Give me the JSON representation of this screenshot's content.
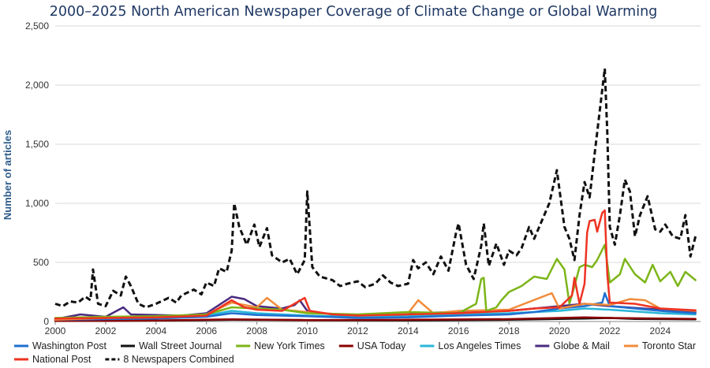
{
  "chart_data": {
    "type": "line",
    "title": "2000–2025 North American Newspaper Coverage of Climate Change or Global Warming",
    "xlabel": "",
    "ylabel": "Number of articles",
    "ylim": [
      0,
      2500
    ],
    "xlim": [
      2000,
      2025.6
    ],
    "yticks": [
      0,
      500,
      1000,
      1500,
      2000,
      2500
    ],
    "ytick_labels": [
      "0",
      "500",
      "1,000",
      "1,500",
      "2,000",
      "2,500"
    ],
    "xticks": [
      2000,
      2002,
      2004,
      2006,
      2008,
      2010,
      2012,
      2014,
      2016,
      2018,
      2020,
      2022,
      2024
    ],
    "xtick_labels": [
      "2000",
      "2002",
      "2004",
      "2006",
      "2008",
      "2010",
      "2012",
      "2014",
      "2016",
      "2018",
      "2020",
      "2022",
      "2024"
    ],
    "grid": true,
    "legend_position": "bottom",
    "series": [
      {
        "name": "Washington Post",
        "color": "#1f6fd1",
        "dashed": false,
        "width": 2.5,
        "points": [
          [
            2000,
            15
          ],
          [
            2002,
            20
          ],
          [
            2004,
            25
          ],
          [
            2006,
            40
          ],
          [
            2007,
            70
          ],
          [
            2008,
            55
          ],
          [
            2010,
            45
          ],
          [
            2012,
            30
          ],
          [
            2014,
            35
          ],
          [
            2016,
            50
          ],
          [
            2018,
            60
          ],
          [
            2019,
            80
          ],
          [
            2020,
            110
          ],
          [
            2021,
            130
          ],
          [
            2021.7,
            160
          ],
          [
            2021.8,
            240
          ],
          [
            2022,
            130
          ],
          [
            2023,
            110
          ],
          [
            2024,
            90
          ],
          [
            2025.4,
            70
          ]
        ]
      },
      {
        "name": "Wall Street Journal",
        "color": "#111111",
        "dashed": false,
        "width": 2.5,
        "points": [
          [
            2000,
            5
          ],
          [
            2004,
            8
          ],
          [
            2007,
            15
          ],
          [
            2010,
            12
          ],
          [
            2014,
            10
          ],
          [
            2018,
            15
          ],
          [
            2021,
            25
          ],
          [
            2022,
            30
          ],
          [
            2023,
            22
          ],
          [
            2025.4,
            18
          ]
        ]
      },
      {
        "name": "New York Times",
        "color": "#7cb518",
        "dashed": false,
        "width": 2.5,
        "points": [
          [
            2000,
            30
          ],
          [
            2002,
            40
          ],
          [
            2004,
            45
          ],
          [
            2006,
            60
          ],
          [
            2007,
            120
          ],
          [
            2008,
            110
          ],
          [
            2009,
            100
          ],
          [
            2010,
            70
          ],
          [
            2012,
            60
          ],
          [
            2014,
            80
          ],
          [
            2016,
            70
          ],
          [
            2016.7,
            150
          ],
          [
            2016.9,
            360
          ],
          [
            2017,
            370
          ],
          [
            2017.1,
            90
          ],
          [
            2017.5,
            120
          ],
          [
            2017.7,
            180
          ],
          [
            2018,
            250
          ],
          [
            2018.5,
            300
          ],
          [
            2019,
            380
          ],
          [
            2019.5,
            360
          ],
          [
            2019.9,
            530
          ],
          [
            2020.2,
            440
          ],
          [
            2020.4,
            150
          ],
          [
            2020.6,
            300
          ],
          [
            2020.8,
            460
          ],
          [
            2021,
            480
          ],
          [
            2021.3,
            460
          ],
          [
            2021.5,
            520
          ],
          [
            2021.8,
            650
          ],
          [
            2022,
            330
          ],
          [
            2022.4,
            400
          ],
          [
            2022.6,
            530
          ],
          [
            2023,
            400
          ],
          [
            2023.4,
            330
          ],
          [
            2023.7,
            480
          ],
          [
            2024,
            340
          ],
          [
            2024.4,
            420
          ],
          [
            2024.7,
            300
          ],
          [
            2025,
            420
          ],
          [
            2025.4,
            350
          ]
        ]
      },
      {
        "name": "USA Today",
        "color": "#8b0000",
        "dashed": false,
        "width": 2.5,
        "points": [
          [
            2000,
            5
          ],
          [
            2004,
            8
          ],
          [
            2007,
            18
          ],
          [
            2010,
            12
          ],
          [
            2014,
            15
          ],
          [
            2018,
            20
          ],
          [
            2021,
            35
          ],
          [
            2022,
            30
          ],
          [
            2024,
            25
          ],
          [
            2025.4,
            22
          ]
        ]
      },
      {
        "name": "Los Angeles Times",
        "color": "#29b6d8",
        "dashed": false,
        "width": 2.5,
        "points": [
          [
            2000,
            20
          ],
          [
            2002,
            30
          ],
          [
            2004,
            35
          ],
          [
            2006,
            50
          ],
          [
            2007,
            90
          ],
          [
            2008,
            70
          ],
          [
            2010,
            50
          ],
          [
            2012,
            40
          ],
          [
            2014,
            50
          ],
          [
            2016,
            60
          ],
          [
            2018,
            70
          ],
          [
            2020,
            90
          ],
          [
            2021,
            110
          ],
          [
            2022,
            100
          ],
          [
            2024,
            70
          ],
          [
            2025.4,
            60
          ]
        ]
      },
      {
        "name": "Globe & Mail",
        "color": "#4b2a7f",
        "dashed": false,
        "width": 2.5,
        "points": [
          [
            2000,
            20
          ],
          [
            2001,
            60
          ],
          [
            2002,
            40
          ],
          [
            2002.7,
            120
          ],
          [
            2003,
            60
          ],
          [
            2005,
            50
          ],
          [
            2006,
            70
          ],
          [
            2007,
            210
          ],
          [
            2007.5,
            190
          ],
          [
            2008,
            130
          ],
          [
            2009,
            110
          ],
          [
            2009.5,
            140
          ],
          [
            2009.7,
            180
          ],
          [
            2010,
            90
          ],
          [
            2011,
            60
          ],
          [
            2012,
            50
          ],
          [
            2014,
            70
          ],
          [
            2016,
            80
          ],
          [
            2018,
            90
          ],
          [
            2020,
            130
          ],
          [
            2021,
            150
          ],
          [
            2022,
            130
          ],
          [
            2024,
            100
          ],
          [
            2025.4,
            80
          ]
        ]
      },
      {
        "name": "Toronto Star",
        "color": "#f08c3c",
        "dashed": false,
        "width": 2.5,
        "points": [
          [
            2000,
            15
          ],
          [
            2002,
            30
          ],
          [
            2004,
            35
          ],
          [
            2006,
            60
          ],
          [
            2007,
            160
          ],
          [
            2007.5,
            140
          ],
          [
            2008,
            120
          ],
          [
            2008.4,
            200
          ],
          [
            2009,
            100
          ],
          [
            2010,
            80
          ],
          [
            2012,
            50
          ],
          [
            2014,
            70
          ],
          [
            2014.4,
            180
          ],
          [
            2015,
            70
          ],
          [
            2016,
            90
          ],
          [
            2018,
            100
          ],
          [
            2019.7,
            240
          ],
          [
            2020,
            110
          ],
          [
            2021,
            150
          ],
          [
            2022,
            140
          ],
          [
            2022.8,
            190
          ],
          [
            2023.4,
            180
          ],
          [
            2024,
            110
          ],
          [
            2025.4,
            90
          ]
        ]
      },
      {
        "name": "National Post",
        "color": "#ee3322",
        "dashed": false,
        "width": 2.5,
        "points": [
          [
            2000,
            25
          ],
          [
            2002,
            30
          ],
          [
            2004,
            35
          ],
          [
            2006,
            50
          ],
          [
            2007,
            180
          ],
          [
            2007.5,
            120
          ],
          [
            2008,
            100
          ],
          [
            2009,
            90
          ],
          [
            2009.9,
            200
          ],
          [
            2010.1,
            90
          ],
          [
            2011,
            60
          ],
          [
            2012,
            50
          ],
          [
            2014,
            60
          ],
          [
            2016,
            70
          ],
          [
            2017,
            80
          ],
          [
            2018,
            90
          ],
          [
            2019,
            110
          ],
          [
            2020,
            120
          ],
          [
            2020.5,
            220
          ],
          [
            2020.6,
            370
          ],
          [
            2020.8,
            150
          ],
          [
            2021,
            320
          ],
          [
            2021.1,
            750
          ],
          [
            2021.2,
            850
          ],
          [
            2021.4,
            860
          ],
          [
            2021.5,
            760
          ],
          [
            2021.7,
            920
          ],
          [
            2021.8,
            940
          ],
          [
            2021.9,
            400
          ],
          [
            2022,
            160
          ],
          [
            2023,
            150
          ],
          [
            2024,
            110
          ],
          [
            2025.4,
            95
          ]
        ]
      },
      {
        "name": "8 Newspapers Combined",
        "color": "#111111",
        "dashed": true,
        "width": 3,
        "points": [
          [
            2000,
            150
          ],
          [
            2000.3,
            130
          ],
          [
            2000.6,
            170
          ],
          [
            2000.9,
            160
          ],
          [
            2001.2,
            210
          ],
          [
            2001.4,
            180
          ],
          [
            2001.5,
            440
          ],
          [
            2001.7,
            150
          ],
          [
            2002,
            130
          ],
          [
            2002.3,
            260
          ],
          [
            2002.6,
            220
          ],
          [
            2002.8,
            380
          ],
          [
            2003,
            300
          ],
          [
            2003.3,
            150
          ],
          [
            2003.6,
            120
          ],
          [
            2004,
            150
          ],
          [
            2004.5,
            200
          ],
          [
            2004.8,
            160
          ],
          [
            2005,
            220
          ],
          [
            2005.5,
            270
          ],
          [
            2005.8,
            230
          ],
          [
            2006,
            330
          ],
          [
            2006.3,
            300
          ],
          [
            2006.5,
            450
          ],
          [
            2006.8,
            420
          ],
          [
            2007,
            600
          ],
          [
            2007.1,
            1000
          ],
          [
            2007.3,
            800
          ],
          [
            2007.6,
            650
          ],
          [
            2007.9,
            820
          ],
          [
            2008.1,
            630
          ],
          [
            2008.4,
            790
          ],
          [
            2008.6,
            560
          ],
          [
            2009,
            500
          ],
          [
            2009.3,
            530
          ],
          [
            2009.6,
            400
          ],
          [
            2009.9,
            520
          ],
          [
            2010,
            1100
          ],
          [
            2010.2,
            460
          ],
          [
            2010.5,
            380
          ],
          [
            2011,
            350
          ],
          [
            2011.3,
            300
          ],
          [
            2011.6,
            320
          ],
          [
            2012,
            340
          ],
          [
            2012.3,
            290
          ],
          [
            2012.7,
            320
          ],
          [
            2013,
            390
          ],
          [
            2013.3,
            330
          ],
          [
            2013.6,
            300
          ],
          [
            2014,
            320
          ],
          [
            2014.2,
            520
          ],
          [
            2014.4,
            450
          ],
          [
            2014.7,
            500
          ],
          [
            2015,
            400
          ],
          [
            2015.3,
            550
          ],
          [
            2015.6,
            430
          ],
          [
            2015.9,
            750
          ],
          [
            2016,
            830
          ],
          [
            2016.3,
            480
          ],
          [
            2016.6,
            360
          ],
          [
            2016.9,
            640
          ],
          [
            2017,
            830
          ],
          [
            2017.2,
            470
          ],
          [
            2017.5,
            660
          ],
          [
            2017.8,
            480
          ],
          [
            2018,
            600
          ],
          [
            2018.3,
            560
          ],
          [
            2018.5,
            620
          ],
          [
            2018.8,
            800
          ],
          [
            2019,
            700
          ],
          [
            2019.3,
            850
          ],
          [
            2019.6,
            1000
          ],
          [
            2019.9,
            1280
          ],
          [
            2020.2,
            800
          ],
          [
            2020.4,
            700
          ],
          [
            2020.6,
            520
          ],
          [
            2020.8,
            900
          ],
          [
            2021,
            1180
          ],
          [
            2021.2,
            1050
          ],
          [
            2021.4,
            1420
          ],
          [
            2021.6,
            1780
          ],
          [
            2021.8,
            2140
          ],
          [
            2021.9,
            1600
          ],
          [
            2022,
            800
          ],
          [
            2022.2,
            650
          ],
          [
            2022.4,
            900
          ],
          [
            2022.6,
            1200
          ],
          [
            2022.8,
            1100
          ],
          [
            2023,
            720
          ],
          [
            2023.2,
            900
          ],
          [
            2023.5,
            1060
          ],
          [
            2023.8,
            780
          ],
          [
            2024,
            760
          ],
          [
            2024.2,
            820
          ],
          [
            2024.5,
            720
          ],
          [
            2024.8,
            700
          ],
          [
            2025,
            900
          ],
          [
            2025.2,
            550
          ],
          [
            2025.4,
            720
          ]
        ]
      }
    ]
  }
}
